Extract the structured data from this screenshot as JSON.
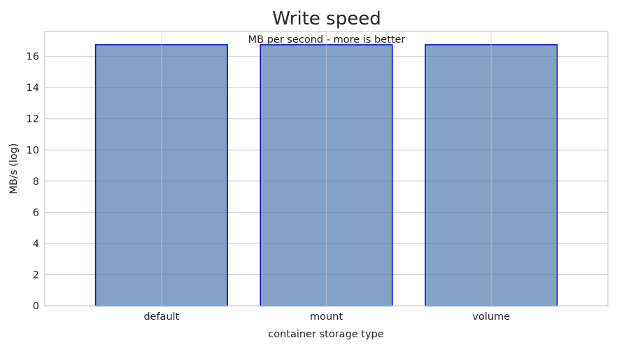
{
  "chart_data": {
    "type": "bar",
    "title": "Write speed",
    "subtitle": "MB per second - more is better",
    "xlabel": "container storage type",
    "ylabel": "MB/s (log)",
    "categories": [
      "default",
      "mount",
      "volume"
    ],
    "values": [
      16.75,
      16.75,
      16.75
    ],
    "ylim": [
      0,
      17.6
    ],
    "yticks": [
      0,
      2,
      4,
      6,
      8,
      10,
      12,
      14,
      16
    ],
    "grid": true,
    "bar_fill_color": "#4a78a8",
    "bar_edge_color": "#0a10d6"
  }
}
